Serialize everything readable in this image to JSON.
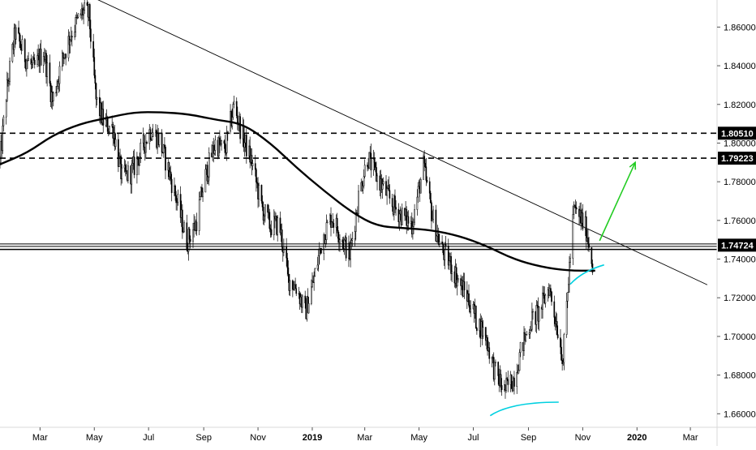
{
  "chart_data": {
    "type": "candlestick",
    "title": "",
    "xlabel": "",
    "ylabel": "",
    "x_range": [
      "2018-01-15",
      "2020-03-31"
    ],
    "ylim": [
      1.653,
      1.874
    ],
    "x_ticks": [
      {
        "label": "Mar",
        "date": "2018-03-01"
      },
      {
        "label": "May",
        "date": "2018-05-01"
      },
      {
        "label": "Jul",
        "date": "2018-07-01"
      },
      {
        "label": "Sep",
        "date": "2018-09-01"
      },
      {
        "label": "Nov",
        "date": "2018-11-01"
      },
      {
        "label": "2019",
        "date": "2019-01-01",
        "bold": true
      },
      {
        "label": "Mar",
        "date": "2019-03-01"
      },
      {
        "label": "May",
        "date": "2019-05-01"
      },
      {
        "label": "Jul",
        "date": "2019-07-01"
      },
      {
        "label": "Sep",
        "date": "2019-09-01"
      },
      {
        "label": "Nov",
        "date": "2019-11-01"
      },
      {
        "label": "2020",
        "date": "2020-01-01",
        "bold": true
      },
      {
        "label": "Mar",
        "date": "2020-03-01"
      }
    ],
    "y_ticks": [
      "1.86000",
      "1.84000",
      "1.82000",
      "1.80000",
      "1.78000",
      "1.76000",
      "1.74000",
      "1.72000",
      "1.70000",
      "1.68000",
      "1.66000"
    ],
    "grid": false,
    "price_path": [
      [
        "2018-01-15",
        1.79
      ],
      [
        "2018-01-22",
        1.825
      ],
      [
        "2018-02-01",
        1.857
      ],
      [
        "2018-02-12",
        1.845
      ],
      [
        "2018-02-22",
        1.838
      ],
      [
        "2018-03-05",
        1.848
      ],
      [
        "2018-03-15",
        1.822
      ],
      [
        "2018-03-26",
        1.843
      ],
      [
        "2018-04-05",
        1.857
      ],
      [
        "2018-04-18",
        1.868
      ],
      [
        "2018-04-25",
        1.866
      ],
      [
        "2018-05-03",
        1.822
      ],
      [
        "2018-05-12",
        1.81
      ],
      [
        "2018-05-22",
        1.808
      ],
      [
        "2018-06-01",
        1.782
      ],
      [
        "2018-06-12",
        1.785
      ],
      [
        "2018-06-22",
        1.795
      ],
      [
        "2018-07-03",
        1.807
      ],
      [
        "2018-07-13",
        1.802
      ],
      [
        "2018-07-24",
        1.785
      ],
      [
        "2018-08-03",
        1.768
      ],
      [
        "2018-08-13",
        1.749
      ],
      [
        "2018-08-23",
        1.758
      ],
      [
        "2018-09-03",
        1.783
      ],
      [
        "2018-09-14",
        1.8
      ],
      [
        "2018-09-25",
        1.796
      ],
      [
        "2018-10-05",
        1.82
      ],
      [
        "2018-10-15",
        1.803
      ],
      [
        "2018-10-25",
        1.79
      ],
      [
        "2018-11-05",
        1.767
      ],
      [
        "2018-11-15",
        1.757
      ],
      [
        "2018-11-25",
        1.758
      ],
      [
        "2018-12-05",
        1.73
      ],
      [
        "2018-12-15",
        1.725
      ],
      [
        "2018-12-24",
        1.712
      ],
      [
        "2019-01-03",
        1.73
      ],
      [
        "2019-01-13",
        1.752
      ],
      [
        "2019-01-23",
        1.762
      ],
      [
        "2019-02-02",
        1.752
      ],
      [
        "2019-02-12",
        1.742
      ],
      [
        "2019-02-22",
        1.772
      ],
      [
        "2019-03-04",
        1.793
      ],
      [
        "2019-03-14",
        1.783
      ],
      [
        "2019-03-24",
        1.775
      ],
      [
        "2019-04-03",
        1.767
      ],
      [
        "2019-04-13",
        1.762
      ],
      [
        "2019-04-23",
        1.758
      ],
      [
        "2019-05-06",
        1.788
      ],
      [
        "2019-05-16",
        1.762
      ],
      [
        "2019-05-26",
        1.745
      ],
      [
        "2019-06-05",
        1.738
      ],
      [
        "2019-06-15",
        1.728
      ],
      [
        "2019-06-25",
        1.72
      ],
      [
        "2019-07-05",
        1.708
      ],
      [
        "2019-07-15",
        1.7
      ],
      [
        "2019-07-25",
        1.682
      ],
      [
        "2019-08-05",
        1.672
      ],
      [
        "2019-08-15",
        1.678
      ],
      [
        "2019-08-25",
        1.695
      ],
      [
        "2019-09-04",
        1.708
      ],
      [
        "2019-09-14",
        1.713
      ],
      [
        "2019-09-24",
        1.726
      ],
      [
        "2019-10-02",
        1.708
      ],
      [
        "2019-10-10",
        1.688
      ],
      [
        "2019-10-16",
        1.73
      ],
      [
        "2019-10-22",
        1.765
      ],
      [
        "2019-10-29",
        1.762
      ],
      [
        "2019-11-05",
        1.755
      ],
      [
        "2019-11-12",
        1.738
      ]
    ],
    "ma_series": [
      [
        "2018-01-15",
        1.789
      ],
      [
        "2018-02-15",
        1.795
      ],
      [
        "2018-03-15",
        1.804
      ],
      [
        "2018-04-15",
        1.81
      ],
      [
        "2018-05-15",
        1.813
      ],
      [
        "2018-06-15",
        1.816
      ],
      [
        "2018-07-15",
        1.816
      ],
      [
        "2018-08-15",
        1.815
      ],
      [
        "2018-09-15",
        1.812
      ],
      [
        "2018-10-15",
        1.81
      ],
      [
        "2018-11-15",
        1.8
      ],
      [
        "2018-12-15",
        1.787
      ],
      [
        "2019-01-15",
        1.775
      ],
      [
        "2019-02-15",
        1.764
      ],
      [
        "2019-03-15",
        1.757
      ],
      [
        "2019-04-15",
        1.756
      ],
      [
        "2019-05-15",
        1.755
      ],
      [
        "2019-06-15",
        1.752
      ],
      [
        "2019-07-15",
        1.747
      ],
      [
        "2019-08-15",
        1.74
      ],
      [
        "2019-09-15",
        1.736
      ],
      [
        "2019-10-15",
        1.734
      ],
      [
        "2019-11-15",
        1.734
      ]
    ],
    "trendline": {
      "start": [
        "2018-05-01",
        1.875
      ],
      "end": [
        "2020-03-20",
        1.7267
      ]
    },
    "horizontal_levels": [
      {
        "value": 1.8051,
        "style": "dashed",
        "label": "1.80510"
      },
      {
        "value": 1.7922,
        "style": "dashed",
        "label": "1.79223"
      },
      {
        "value": 1.7472,
        "style": "double",
        "label": "1.74724"
      },
      {
        "value": 1.745,
        "style": "solid"
      }
    ],
    "annotations": [
      {
        "type": "arrow",
        "color": "#22cc22",
        "start": [
          "2019-11-20",
          1.7495
        ],
        "end": [
          "2019-12-30",
          1.79
        ]
      },
      {
        "type": "curve",
        "color": "#00d0e0",
        "points": [
          [
            "2019-07-20",
            1.659
          ],
          [
            "2019-08-05",
            1.664
          ],
          [
            "2019-09-01",
            1.666
          ],
          [
            "2019-10-05",
            1.666
          ]
        ]
      },
      {
        "type": "curve",
        "color": "#00d0e0",
        "points": [
          [
            "2019-10-18",
            1.727
          ],
          [
            "2019-10-28",
            1.732
          ],
          [
            "2019-11-10",
            1.735
          ],
          [
            "2019-11-25",
            1.737
          ]
        ]
      }
    ],
    "colors": {
      "candle": "#000000",
      "moving_average": "#000000",
      "trendline": "#000000",
      "axis_text": "#000000",
      "price_label_bg": "#000000",
      "price_label_text": "#ffffff",
      "uptrend_arrow": "#22cc22",
      "support_curve": "#00d0e0"
    }
  }
}
